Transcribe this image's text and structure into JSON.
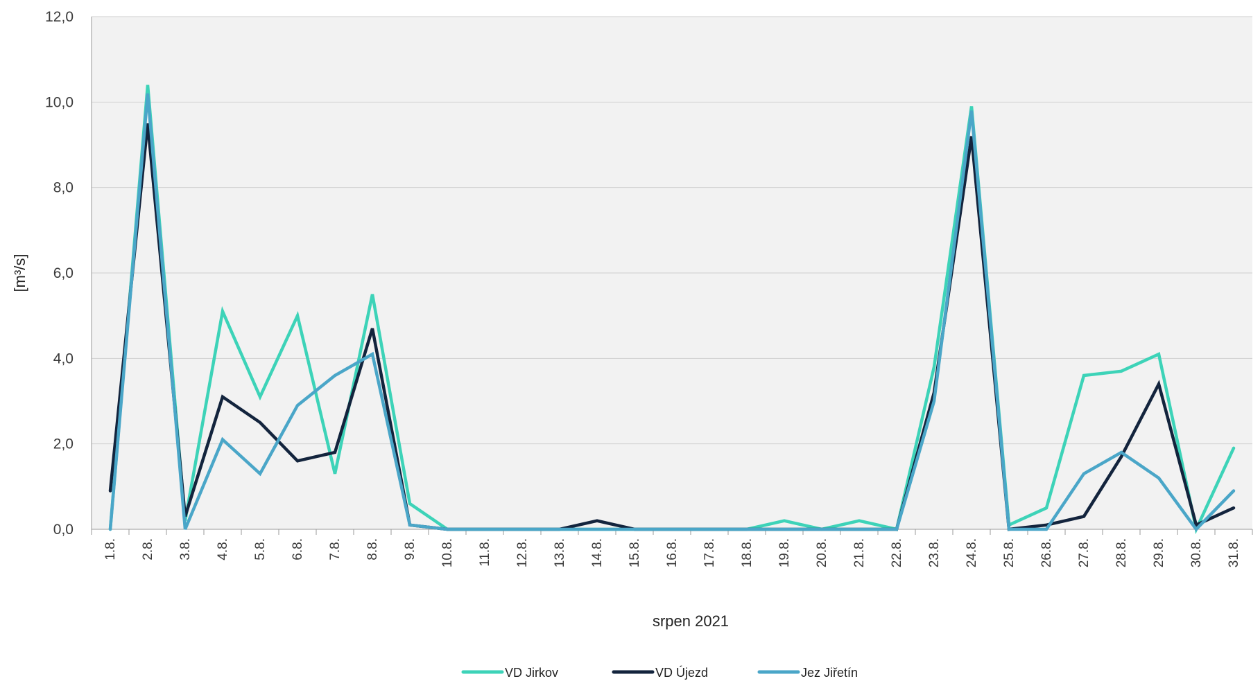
{
  "chart_data": {
    "type": "line",
    "xlabel": "srpen 2021",
    "ylabel": "[m³/s]",
    "ylim": [
      0,
      12
    ],
    "yticks": [
      "0,0",
      "2,0",
      "4,0",
      "6,0",
      "8,0",
      "10,0",
      "12,0"
    ],
    "grid": true,
    "legend_position": "bottom",
    "categories": [
      "1.8.",
      "2.8.",
      "3.8.",
      "4.8.",
      "5.8.",
      "6.8.",
      "7.8.",
      "8.8.",
      "9.8.",
      "10.8.",
      "11.8.",
      "12.8.",
      "13.8.",
      "14.8.",
      "15.8.",
      "16.8.",
      "17.8.",
      "18.8.",
      "19.8.",
      "20.8.",
      "21.8.",
      "22.8.",
      "23.8.",
      "24.8.",
      "25.8.",
      "26.8.",
      "27.8.",
      "28.8.",
      "29.8.",
      "30.8.",
      "31.8."
    ],
    "series": [
      {
        "name": "VD Jirkov",
        "color": "#3dd3b8",
        "values": [
          0.0,
          10.4,
          0.2,
          5.1,
          3.1,
          5.0,
          1.3,
          5.5,
          0.6,
          0.0,
          0.0,
          0.0,
          0.0,
          0.0,
          0.0,
          0.0,
          0.0,
          0.0,
          0.2,
          0.0,
          0.2,
          0.0,
          3.8,
          9.9,
          0.1,
          0.5,
          3.6,
          3.7,
          4.1,
          0.0,
          1.9
        ]
      },
      {
        "name": "VD Újezd",
        "color": "#13243d",
        "values": [
          0.9,
          9.5,
          0.3,
          3.1,
          2.5,
          1.6,
          1.8,
          4.7,
          0.1,
          0.0,
          0.0,
          0.0,
          0.0,
          0.2,
          0.0,
          0.0,
          0.0,
          0.0,
          0.0,
          0.0,
          0.0,
          0.0,
          3.2,
          9.2,
          0.0,
          0.1,
          0.3,
          1.7,
          3.4,
          0.1,
          0.5
        ]
      },
      {
        "name": "Jez Jiřetín",
        "color": "#4aa6c8",
        "values": [
          0.0,
          10.2,
          0.0,
          2.1,
          1.3,
          2.9,
          3.6,
          4.1,
          0.1,
          0.0,
          0.0,
          0.0,
          0.0,
          0.0,
          0.0,
          0.0,
          0.0,
          0.0,
          0.0,
          0.0,
          0.0,
          0.0,
          3.0,
          9.8,
          0.0,
          0.0,
          1.3,
          1.8,
          1.2,
          0.0,
          0.9
        ]
      }
    ]
  }
}
